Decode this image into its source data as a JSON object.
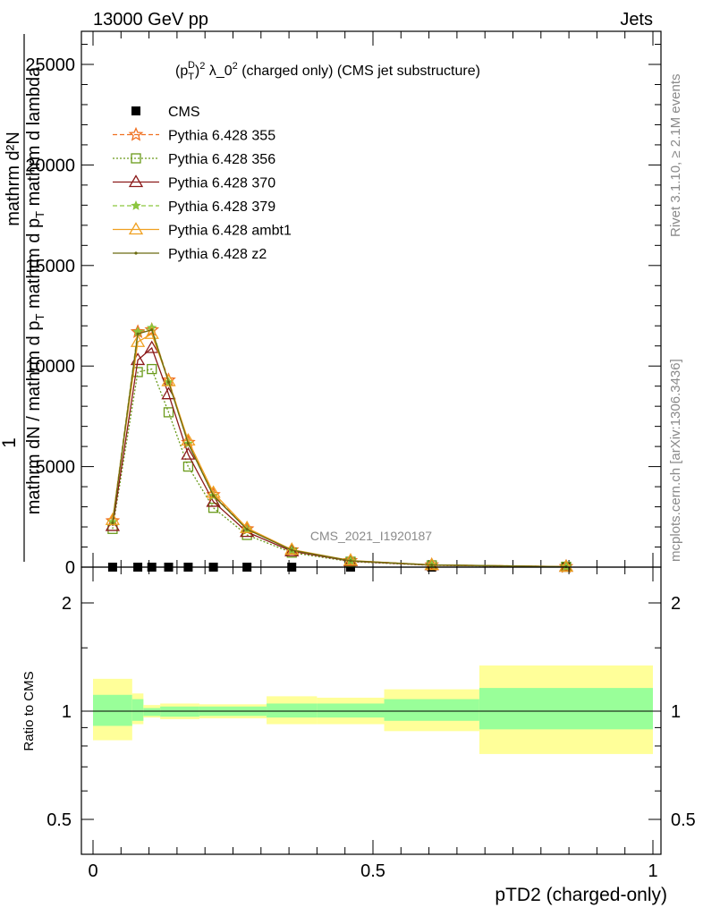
{
  "header": {
    "left": "13000 GeV pp",
    "right": "Jets"
  },
  "side_labels": {
    "rivet": "Rivet 3.1.10, ≥ 2.1M events",
    "mcplots": "mcplots.cern.ch [arXiv:1306.3436]"
  },
  "analysis_tag": "CMS_2021_I1920187",
  "chart_data": [
    {
      "type": "line",
      "title": "(p_T^D)^2 λ_0^2 (charged only) (CMS jet substructure)",
      "title_parts": {
        "p": "(p",
        "sub": "T",
        "sup": "D",
        "close": ")",
        "sq": "2",
        "mid": " λ_0",
        "sq2": "2",
        "tail": " (charged only) (CMS jet substructure)"
      },
      "xlabel": "pTD2 (charged-only)",
      "ylabel_lines": [
        "1",
        "mathrm dN / mathrm d p_T mathrm d p_T mathrm d lambda",
        "mathrm d^2N"
      ],
      "ylabel_numerator": "mathrm d²N",
      "ylabel_denominator": "mathrm d p_T mathrm d lambda",
      "ylabel_one": "1",
      "ylabel_frac": "mathrm dN / mathrm d p",
      "xlim": [
        -0.04,
        1.02
      ],
      "ylim": [
        0,
        26500
      ],
      "yticks": [
        0,
        5000,
        10000,
        15000,
        20000,
        25000
      ],
      "ytick_labels": [
        "0",
        "5000",
        "10000",
        "15000",
        "20000",
        "25000"
      ],
      "log_x": false,
      "log_y": false,
      "legend_position": "top-left",
      "x": [
        0.035,
        0.08,
        0.105,
        0.135,
        0.17,
        0.215,
        0.275,
        0.355,
        0.46,
        0.605,
        0.845
      ],
      "series": [
        {
          "name": "CMS",
          "marker": "square",
          "color": "#000000",
          "values": [
            0,
            0,
            0,
            0,
            0,
            0,
            0,
            0,
            0,
            0,
            0
          ]
        },
        {
          "name": "Pythia 6.428 355",
          "marker": "star-open",
          "color": "#f07020",
          "dash": "5,3",
          "values": [
            2300,
            11700,
            11800,
            9300,
            6200,
            3600,
            1900,
            850,
            320,
            110,
            25
          ]
        },
        {
          "name": "Pythia 6.428 356",
          "marker": "square-open",
          "color": "#6a9a1a",
          "dash": "2,2",
          "values": [
            1900,
            9700,
            9850,
            7700,
            5000,
            2950,
            1600,
            720,
            270,
            90,
            20
          ]
        },
        {
          "name": "Pythia 6.428 370",
          "marker": "triangle-open",
          "color": "#8b1a1a",
          "dash": "",
          "values": [
            2050,
            10300,
            10900,
            8600,
            5600,
            3250,
            1750,
            790,
            300,
            100,
            22
          ]
        },
        {
          "name": "Pythia 6.428 379",
          "marker": "star-filled",
          "color": "#8cc63f",
          "dash": "5,3",
          "values": [
            2250,
            11700,
            11900,
            9200,
            6150,
            3550,
            1880,
            840,
            315,
            108,
            24
          ]
        },
        {
          "name": "Pythia 6.428 ambt1",
          "marker": "triangle-open",
          "color": "#f0a020",
          "dash": "",
          "values": [
            2350,
            11200,
            11600,
            9250,
            6300,
            3700,
            1950,
            870,
            330,
            112,
            26
          ]
        },
        {
          "name": "Pythia 6.428 z2",
          "marker": "dot",
          "color": "#6b6b10",
          "dash": "",
          "values": [
            2200,
            11600,
            11800,
            9200,
            6150,
            3550,
            1880,
            845,
            318,
            109,
            24
          ]
        }
      ]
    },
    {
      "type": "area",
      "ylabel": "Ratio to CMS",
      "xlabel": "pTD2 (charged-only)",
      "xlim": [
        -0.04,
        1.02
      ],
      "ylim": [
        0.4,
        2.35
      ],
      "log_y": true,
      "yticks": [
        0.5,
        1,
        2
      ],
      "ytick_labels": [
        "0.5",
        "1",
        "2"
      ],
      "xticks": [
        0,
        0.5,
        1
      ],
      "xtick_labels": [
        "0",
        "0.5",
        "1"
      ],
      "bins": [
        {
          "x0": 0.0,
          "x1": 0.07,
          "green": [
            0.91,
            1.11
          ],
          "yellow": [
            0.83,
            1.23
          ]
        },
        {
          "x0": 0.07,
          "x1": 0.09,
          "green": [
            0.94,
            1.08
          ],
          "yellow": [
            0.92,
            1.12
          ]
        },
        {
          "x0": 0.09,
          "x1": 0.12,
          "green": [
            0.97,
            1.02
          ],
          "yellow": [
            0.96,
            1.04
          ]
        },
        {
          "x0": 0.12,
          "x1": 0.19,
          "green": [
            0.965,
            1.03
          ],
          "yellow": [
            0.95,
            1.05
          ]
        },
        {
          "x0": 0.19,
          "x1": 0.31,
          "green": [
            0.97,
            1.03
          ],
          "yellow": [
            0.955,
            1.045
          ]
        },
        {
          "x0": 0.31,
          "x1": 0.4,
          "green": [
            0.96,
            1.05
          ],
          "yellow": [
            0.92,
            1.1
          ]
        },
        {
          "x0": 0.4,
          "x1": 0.52,
          "green": [
            0.96,
            1.05
          ],
          "yellow": [
            0.92,
            1.09
          ]
        },
        {
          "x0": 0.52,
          "x1": 0.69,
          "green": [
            0.94,
            1.08
          ],
          "yellow": [
            0.88,
            1.15
          ]
        },
        {
          "x0": 0.69,
          "x1": 1.0,
          "green": [
            0.89,
            1.16
          ],
          "yellow": [
            0.76,
            1.34
          ]
        }
      ]
    }
  ],
  "colors": {
    "green_band": "#99ff99",
    "yellow_band": "#ffff99",
    "frame": "#000000"
  }
}
